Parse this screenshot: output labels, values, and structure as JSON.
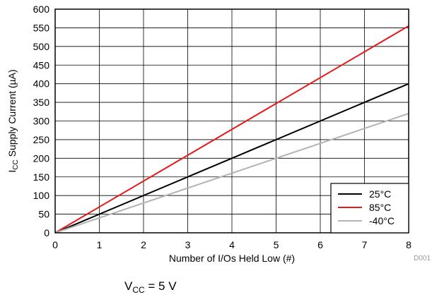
{
  "chart_data": {
    "type": "line",
    "xlabel": "Number of I/Os Held Low (#)",
    "ylabel": {
      "prefix": "I",
      "subscript": "CC",
      "suffix": " Supply Current (µA)"
    },
    "xlim": [
      0,
      8
    ],
    "ylim": [
      0,
      600
    ],
    "x_ticks": [
      0,
      1,
      2,
      3,
      4,
      5,
      6,
      7,
      8
    ],
    "y_ticks": [
      0,
      50,
      100,
      150,
      200,
      250,
      300,
      350,
      400,
      450,
      500,
      550,
      600
    ],
    "grid": true,
    "legend_position": "bottom-right",
    "series": [
      {
        "name": "25°C",
        "color": "#000000",
        "x": [
          0,
          8
        ],
        "y": [
          0,
          400
        ]
      },
      {
        "name": "85°C",
        "color": "#e41a1c",
        "x": [
          0,
          8
        ],
        "y": [
          0,
          555
        ]
      },
      {
        "name": "-40°C",
        "color": "#b3b3b3",
        "x": [
          0,
          8
        ],
        "y": [
          0,
          320
        ]
      }
    ],
    "figure_id": "D001",
    "caption": {
      "prefix": "V",
      "subscript": "CC",
      "suffix": " = 5 V"
    }
  }
}
